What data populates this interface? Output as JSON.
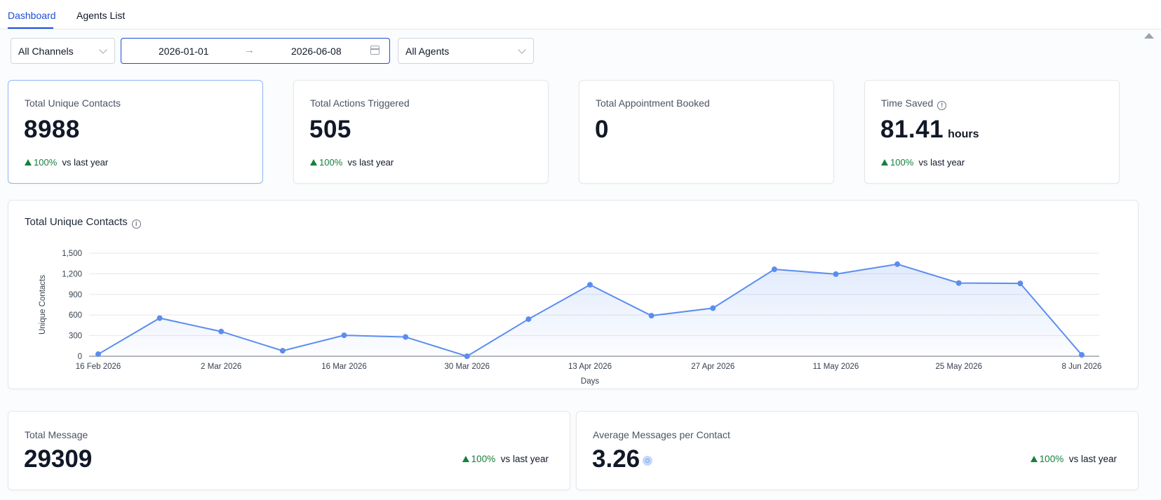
{
  "tabs": [
    {
      "label": "Dashboard",
      "active": true
    },
    {
      "label": "Agents List",
      "active": false
    }
  ],
  "filters": {
    "channel": "All Channels",
    "date_start": "2026-01-01",
    "date_arrow": "→",
    "date_end": "2026-06-08",
    "agent": "All Agents"
  },
  "kpis": [
    {
      "label": "Total Unique Contacts",
      "value": "8988",
      "unit": "",
      "trend_pct": "100%",
      "trend_text": "vs last year"
    },
    {
      "label": "Total Actions Triggered",
      "value": "505",
      "unit": "",
      "trend_pct": "100%",
      "trend_text": "vs last year"
    },
    {
      "label": "Total Appointment Booked",
      "value": "0",
      "unit": "",
      "trend_pct": "",
      "trend_text": ""
    },
    {
      "label": "Time Saved",
      "value": "81.41",
      "unit": "hours",
      "trend_pct": "100%",
      "trend_text": "vs last year"
    }
  ],
  "chart_section": {
    "title": "Total Unique Contacts",
    "info_icon": "info-icon"
  },
  "chart_data": {
    "type": "area",
    "title": "Total Unique Contacts",
    "xlabel": "Days",
    "ylabel": "Unique Contacts",
    "ylim": [
      0,
      1500
    ],
    "yticks": [
      "0",
      "300",
      "600",
      "900",
      "1,200",
      "1,500"
    ],
    "xtick_labels": [
      "16 Feb 2026",
      "2 Mar 2026",
      "16 Mar 2026",
      "30 Mar 2026",
      "13 Apr 2026",
      "27 Apr 2026",
      "11 May 2026",
      "25 May 2026",
      "8 Jun 2026"
    ],
    "x": [
      "16 Feb 2026",
      "23 Feb 2026",
      "2 Mar 2026",
      "9 Mar 2026",
      "16 Mar 2026",
      "23 Mar 2026",
      "30 Mar 2026",
      "6 Apr 2026",
      "13 Apr 2026",
      "20 Apr 2026",
      "27 Apr 2026",
      "4 May 2026",
      "11 May 2026",
      "18 May 2026",
      "25 May 2026",
      "1 Jun 2026",
      "8 Jun 2026"
    ],
    "values": [
      30,
      555,
      360,
      80,
      305,
      280,
      0,
      540,
      1040,
      590,
      700,
      1265,
      1195,
      1340,
      1065,
      1060,
      20
    ],
    "grid": true,
    "color": "#5b8def"
  },
  "bottom_cards": [
    {
      "label": "Total Message",
      "value": "29309",
      "trend_pct": "100%",
      "trend_text": "vs last year"
    },
    {
      "label": "Average Messages per Contact",
      "value": "3.26",
      "trend_pct": "100%",
      "trend_text": "vs last year"
    }
  ]
}
